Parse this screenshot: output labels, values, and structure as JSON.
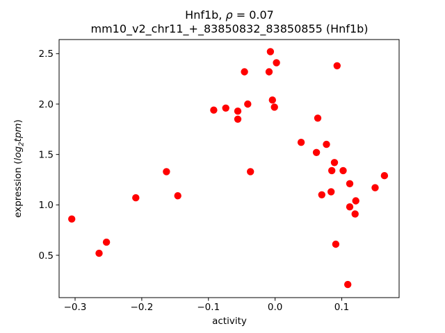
{
  "title": {
    "line1_prefix": "Hnf1b, ",
    "line1_rho": "ρ",
    "line1_suffix": " = 0.07",
    "line2": "mm10_v2_chr11_+_83850832_83850855 (Hnf1b)"
  },
  "ylabel_parts": {
    "prefix": "expression (",
    "log_word": "log",
    "subscript": "2",
    "tpm_word": "tpm",
    "suffix": ")"
  },
  "chart_data": {
    "type": "scatter",
    "title": "Hnf1b, ρ = 0.07",
    "subtitle": "mm10_v2_chr11_+_83850832_83850855 (Hnf1b)",
    "xlabel": "activity",
    "ylabel": "expression (log2tpm)",
    "grid": false,
    "legend": "none",
    "marker": "circle",
    "marker_color": "#ff0000",
    "marker_radius_px": 5.2,
    "xlim": [
      -0.324,
      0.186
    ],
    "ylim": [
      0.08,
      2.64
    ],
    "x_ticks": [
      -0.3,
      -0.2,
      -0.1,
      0.0,
      0.1
    ],
    "x_tick_labels": [
      "−0.3",
      "−0.2",
      "−0.1",
      "0.0",
      "0.1"
    ],
    "y_ticks": [
      0.5,
      1.0,
      1.5,
      2.0,
      2.5
    ],
    "y_tick_labels": [
      "0.5",
      "1.0",
      "1.5",
      "2.0",
      "2.5"
    ],
    "points": [
      [
        -0.305,
        0.86
      ],
      [
        -0.264,
        0.52
      ],
      [
        -0.253,
        0.63
      ],
      [
        -0.209,
        1.07
      ],
      [
        -0.163,
        1.33
      ],
      [
        -0.146,
        1.09
      ],
      [
        -0.092,
        1.94
      ],
      [
        -0.074,
        1.96
      ],
      [
        -0.056,
        1.93
      ],
      [
        -0.056,
        1.85
      ],
      [
        -0.046,
        2.32
      ],
      [
        -0.041,
        2.0
      ],
      [
        -0.037,
        1.33
      ],
      [
        -0.009,
        2.32
      ],
      [
        -0.007,
        2.52
      ],
      [
        -0.004,
        2.04
      ],
      [
        -0.001,
        1.97
      ],
      [
        0.002,
        2.41
      ],
      [
        0.039,
        1.62
      ],
      [
        0.062,
        1.52
      ],
      [
        0.064,
        1.86
      ],
      [
        0.07,
        1.1
      ],
      [
        0.077,
        1.6
      ],
      [
        0.084,
        1.13
      ],
      [
        0.085,
        1.34
      ],
      [
        0.089,
        1.42
      ],
      [
        0.091,
        0.61
      ],
      [
        0.093,
        2.38
      ],
      [
        0.102,
        1.34
      ],
      [
        0.109,
        0.21
      ],
      [
        0.112,
        1.21
      ],
      [
        0.112,
        0.98
      ],
      [
        0.12,
        0.91
      ],
      [
        0.121,
        1.04
      ],
      [
        0.15,
        1.17
      ],
      [
        0.164,
        1.29
      ]
    ]
  }
}
